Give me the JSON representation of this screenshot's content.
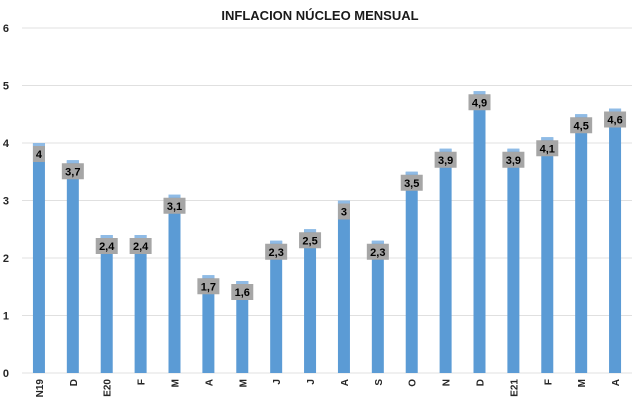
{
  "chart_data": {
    "type": "bar",
    "title": "INFLACION NÚCLEO MENSUAL",
    "xlabel": "",
    "ylabel": "",
    "ylim": [
      0,
      6
    ],
    "yticks": [
      "0",
      "1",
      "2",
      "3",
      "4",
      "5",
      "6"
    ],
    "grid": true,
    "categories": [
      "N19",
      "D",
      "E20",
      "F",
      "M",
      "A",
      "M",
      "J",
      "J",
      "A",
      "S",
      "O",
      "N",
      "D",
      "E21",
      "F",
      "M",
      "A"
    ],
    "values": [
      4,
      3.7,
      2.4,
      2.4,
      3.1,
      1.7,
      1.6,
      2.3,
      2.5,
      3,
      2.3,
      3.5,
      3.9,
      4.9,
      3.9,
      4.1,
      4.5,
      4.6
    ],
    "data_labels": [
      "4",
      "3,7",
      "2,4",
      "2,4",
      "3,1",
      "1,7",
      "1,6",
      "2,3",
      "2,5",
      "3",
      "2,3",
      "3,5",
      "3,9",
      "4,9",
      "3,9",
      "4,1",
      "4,5",
      "4,6"
    ],
    "colors": {
      "bar": "#5b9bd5",
      "bar_top": "#8fbbe6",
      "label_box": "#a6a6a6"
    }
  }
}
